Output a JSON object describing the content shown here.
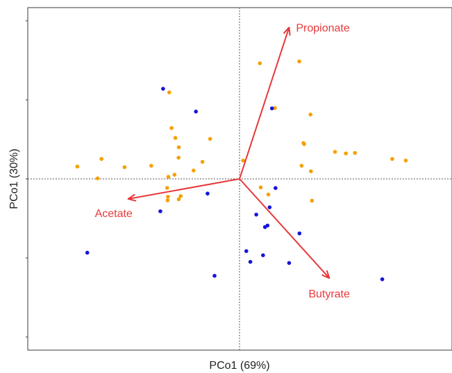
{
  "chart_data": {
    "type": "scatter",
    "title": "",
    "xlabel": "PCo1 (69%)",
    "ylabel": "PCo1 (30%)",
    "xlim": [
      -1.0,
      1.0
    ],
    "ylim": [
      -1.0,
      1.0
    ],
    "grid": false,
    "legend": "none",
    "reference_lines": {
      "x": 0,
      "y": 0,
      "style": "dotted"
    },
    "series": [
      {
        "color": "#F5A000",
        "points": [
          [
            0.282,
            0.743
          ],
          [
            0.167,
            0.448
          ],
          [
            0.335,
            0.407
          ],
          [
            0.302,
            0.227
          ],
          [
            0.305,
            0.22
          ],
          [
            0.293,
            0.083
          ],
          [
            0.451,
            0.171
          ],
          [
            0.502,
            0.161
          ],
          [
            0.545,
            0.164
          ],
          [
            0.721,
            0.126
          ],
          [
            0.785,
            0.116
          ],
          [
            0.096,
            0.731
          ],
          [
            0.337,
            0.048
          ],
          [
            0.017,
            0.116
          ],
          [
            -0.332,
            0.547
          ],
          [
            -0.321,
            0.322
          ],
          [
            -0.303,
            0.259
          ],
          [
            -0.287,
            0.2
          ],
          [
            -0.288,
            0.134
          ],
          [
            -0.139,
            0.253
          ],
          [
            -0.175,
            0.108
          ],
          [
            -0.217,
            0.053
          ],
          [
            -0.307,
            0.026
          ],
          [
            -0.336,
            0.013
          ],
          [
            -0.342,
            -0.057
          ],
          [
            -0.278,
            -0.109
          ],
          [
            -0.338,
            -0.113
          ],
          [
            -0.34,
            -0.136
          ],
          [
            -0.287,
            -0.129
          ],
          [
            -0.417,
            0.083
          ],
          [
            -0.543,
            0.074
          ],
          [
            -0.652,
            0.126
          ],
          [
            -0.67,
            0.003
          ],
          [
            -0.766,
            0.078
          ],
          [
            0.1,
            -0.054
          ],
          [
            0.136,
            -0.099
          ],
          [
            0.342,
            -0.138
          ]
        ]
      },
      {
        "color": "#1515D8",
        "points": [
          [
            -0.361,
            0.57
          ],
          [
            -0.206,
            0.426
          ],
          [
            0.153,
            0.446
          ],
          [
            -0.151,
            -0.093
          ],
          [
            0.17,
            -0.058
          ],
          [
            0.142,
            -0.18
          ],
          [
            0.079,
            -0.226
          ],
          [
            0.132,
            -0.295
          ],
          [
            0.12,
            -0.305
          ],
          [
            0.283,
            -0.345
          ],
          [
            0.032,
            -0.457
          ],
          [
            0.051,
            -0.525
          ],
          [
            0.111,
            -0.483
          ],
          [
            0.234,
            -0.532
          ],
          [
            -0.374,
            -0.205
          ],
          [
            -0.719,
            -0.467
          ],
          [
            -0.118,
            -0.613
          ],
          [
            0.674,
            -0.635
          ]
        ]
      }
    ],
    "vectors": [
      {
        "name": "Propionate",
        "x": 0.234,
        "y": 0.958
      },
      {
        "name": "Butyrate",
        "x": 0.424,
        "y": -0.628
      },
      {
        "name": "Acetate",
        "x": -0.526,
        "y": -0.127
      }
    ],
    "vector_color": "#E8373A",
    "vector_label_color": "#E8373A"
  }
}
